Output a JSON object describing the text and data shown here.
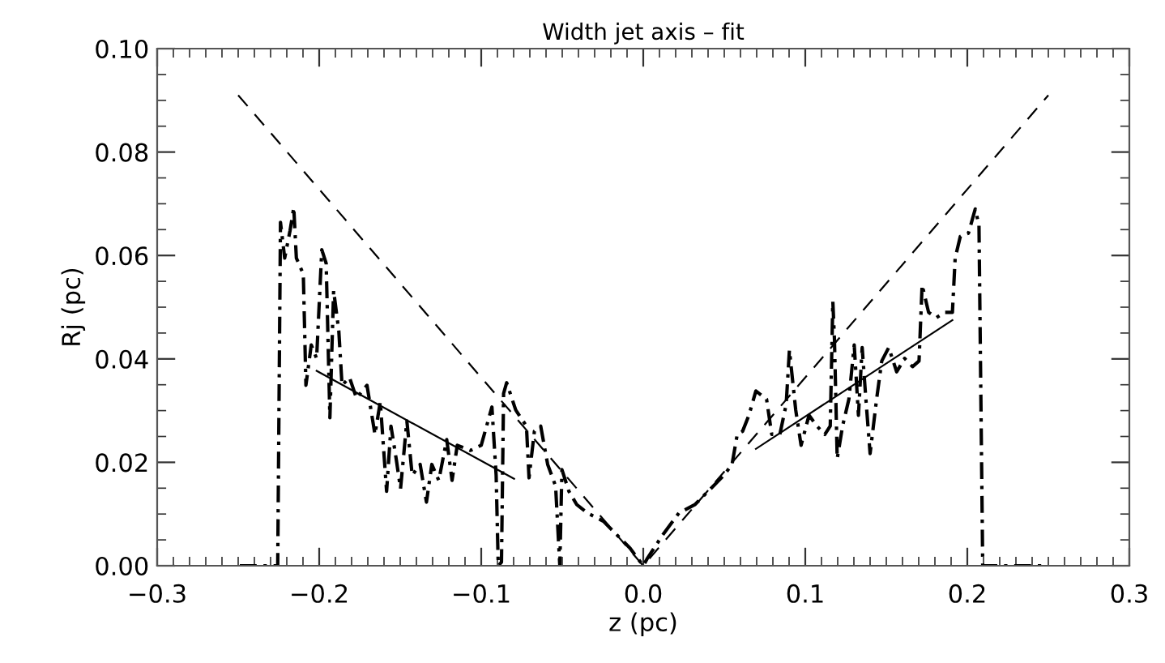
{
  "chart_data": {
    "type": "line",
    "title": "Width jet axis – fit",
    "xlabel": "z (pc)",
    "ylabel": "Rj (pc)",
    "xlim": [
      -0.3,
      0.3
    ],
    "ylim": [
      0,
      0.1
    ],
    "xticks": [
      {
        "value": -0.3,
        "label": "−0.3"
      },
      {
        "value": -0.2,
        "label": "−0.2"
      },
      {
        "value": -0.1,
        "label": "−0.1"
      },
      {
        "value": 0.0,
        "label": "0.0"
      },
      {
        "value": 0.1,
        "label": "0.1"
      },
      {
        "value": 0.2,
        "label": "0.2"
      },
      {
        "value": 0.3,
        "label": "0.3"
      }
    ],
    "yticks": [
      {
        "value": 0.0,
        "label": "0.00"
      },
      {
        "value": 0.02,
        "label": "0.02"
      },
      {
        "value": 0.04,
        "label": "0.04"
      },
      {
        "value": 0.06,
        "label": "0.06"
      },
      {
        "value": 0.08,
        "label": "0.08"
      },
      {
        "value": 0.1,
        "label": "0.10"
      }
    ],
    "grid": false,
    "legend": false,
    "series": [
      {
        "color": "#000000",
        "line_style": "dashdot",
        "x": [
          -0.249,
          -0.2256,
          -0.2239,
          -0.2213,
          -0.218,
          -0.2157,
          -0.2141,
          -0.2098,
          -0.2082,
          -0.2049,
          -0.2016,
          -0.1984,
          -0.1957,
          -0.1934,
          -0.1911,
          -0.1879,
          -0.1859,
          -0.1813,
          -0.177,
          -0.1705,
          -0.1656,
          -0.1623,
          -0.1584,
          -0.1557,
          -0.1525,
          -0.1498,
          -0.1459,
          -0.1426,
          -0.1377,
          -0.1338,
          -0.1305,
          -0.1262,
          -0.1213,
          -0.118,
          -0.1148,
          -0.1066,
          -0.1,
          -0.0934,
          -0.0908,
          -0.0895,
          -0.0875,
          -0.0862,
          -0.0843,
          -0.0787,
          -0.0721,
          -0.0705,
          -0.0672,
          -0.0633,
          -0.059,
          -0.0541,
          -0.0515,
          -0.0502,
          -0.0459,
          -0.041,
          -0.0344,
          -0.0246,
          -0.0148,
          -0.0082,
          0.0,
          0.0023,
          0.0121,
          0.022,
          0.0318,
          0.0416,
          0.0498,
          0.0548,
          0.058,
          0.0613,
          0.0652,
          0.0695,
          0.0761,
          0.0793,
          0.0843,
          0.0882,
          0.0902,
          0.0941,
          0.0974,
          0.1023,
          0.1072,
          0.1121,
          0.1154,
          0.117,
          0.118,
          0.1197,
          0.123,
          0.1269,
          0.1302,
          0.1328,
          0.1351,
          0.1374,
          0.14,
          0.144,
          0.1472,
          0.1515,
          0.1564,
          0.1613,
          0.1662,
          0.1702,
          0.1721,
          0.1761,
          0.181,
          0.1859,
          0.1908,
          0.1925,
          0.1957,
          0.2007,
          0.2049,
          0.2072,
          0.2095,
          0.2318,
          0.2466
        ],
        "values": [
          0,
          0,
          0.0664,
          0.0595,
          0.0648,
          0.0693,
          0.0595,
          0.0564,
          0.0349,
          0.0427,
          0.0401,
          0.0611,
          0.0585,
          0.0286,
          0.0532,
          0.0454,
          0.0349,
          0.0364,
          0.0324,
          0.0349,
          0.0254,
          0.0317,
          0.0144,
          0.027,
          0.0207,
          0.0149,
          0.028,
          0.0175,
          0.0196,
          0.0123,
          0.0196,
          0.0165,
          0.0244,
          0.0165,
          0.0233,
          0.0223,
          0.0233,
          0.0307,
          0.0175,
          0,
          0.0007,
          0.0333,
          0.0354,
          0.0301,
          0.027,
          0.017,
          0.026,
          0.027,
          0.0196,
          0.0154,
          0,
          0.0186,
          0.0144,
          0.0118,
          0.0102,
          0.0086,
          0.0055,
          0.0034,
          0,
          0.0013,
          0.006,
          0.0102,
          0.0118,
          0.0149,
          0.0175,
          0.0196,
          0.0254,
          0.026,
          0.0291,
          0.0338,
          0.0322,
          0.0254,
          0.0254,
          0.0312,
          0.0417,
          0.0301,
          0.0233,
          0.0291,
          0.027,
          0.0254,
          0.027,
          0.0511,
          0.0438,
          0.0207,
          0.027,
          0.0322,
          0.0427,
          0.0291,
          0.0422,
          0.0322,
          0.0217,
          0.0322,
          0.0396,
          0.0422,
          0.0375,
          0.0401,
          0.0385,
          0.0396,
          0.0543,
          0.049,
          0.048,
          0.049,
          0.049,
          0.0595,
          0.0637,
          0.0643,
          0.069,
          0.0658,
          0,
          0,
          0
        ]
      },
      {
        "color": "#000000",
        "line_style": "dashed",
        "x": [
          -0.25,
          0.0,
          0.25
        ],
        "values": [
          0.091,
          0.0,
          0.091
        ]
      },
      {
        "color": "#000000",
        "line_style": "solid",
        "x": [
          -0.2016,
          -0.0797
        ],
        "values": [
          0.0377,
          0.0168
        ]
      },
      {
        "color": "#000000",
        "line_style": "solid",
        "x": [
          0.0695,
          0.1908
        ],
        "values": [
          0.0226,
          0.0475
        ]
      }
    ]
  }
}
